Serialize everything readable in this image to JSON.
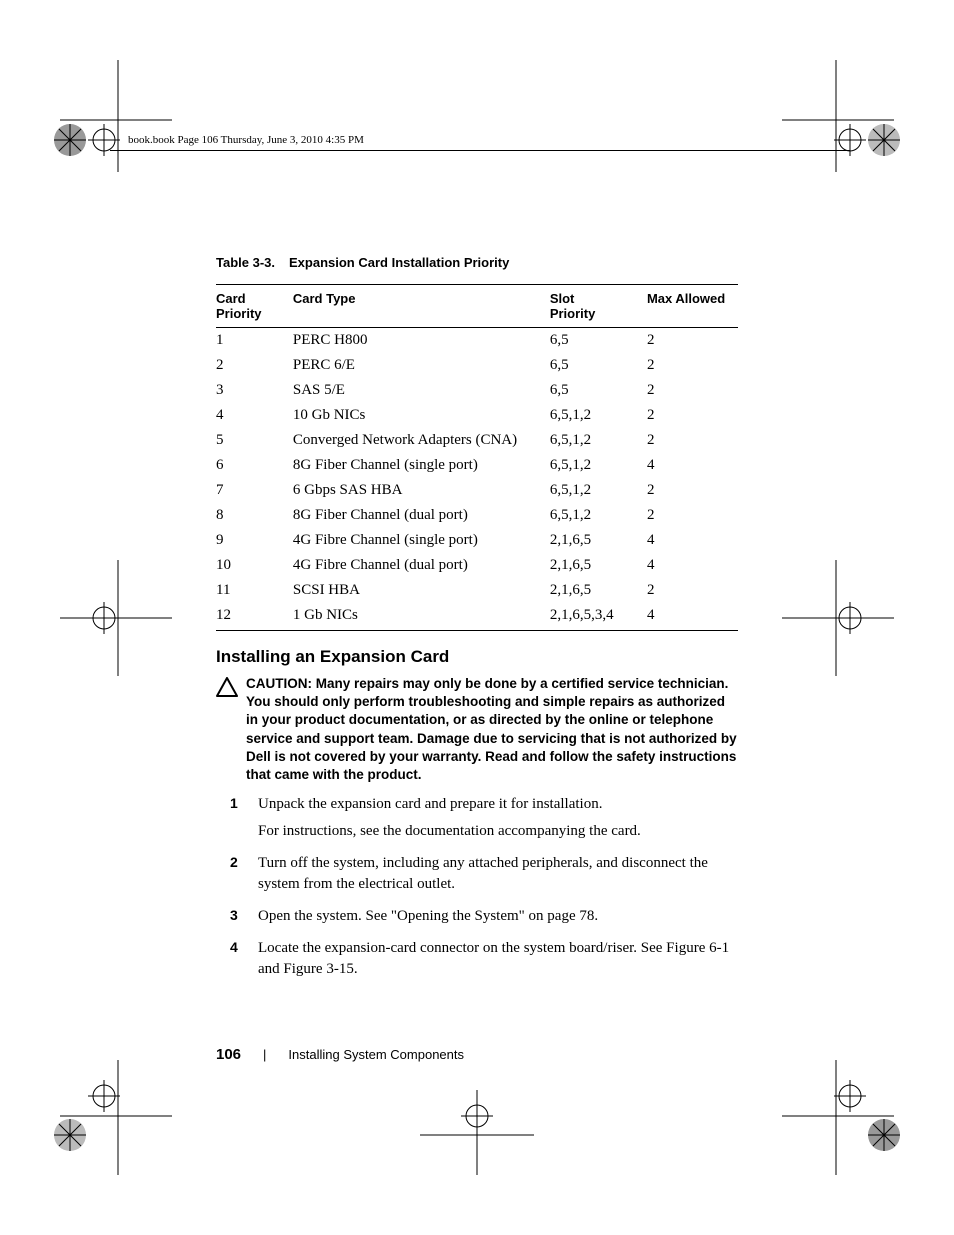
{
  "header_note": "book.book  Page 106  Thursday, June 3, 2010  4:35 PM",
  "table": {
    "caption_label": "Table 3-3.",
    "caption_title": "Expansion Card Installation Priority",
    "columns": {
      "card_priority": "Card Priority",
      "card_type": "Card Type",
      "slot_priority": "Slot Priority",
      "max_allowed": "Max Allowed"
    },
    "rows": [
      {
        "priority": "1",
        "type": "PERC H800",
        "slot": "6,5",
        "max": "2"
      },
      {
        "priority": "2",
        "type": "PERC 6/E",
        "slot": "6,5",
        "max": "2"
      },
      {
        "priority": "3",
        "type": "SAS 5/E",
        "slot": "6,5",
        "max": "2"
      },
      {
        "priority": "4",
        "type": "10 Gb NICs",
        "slot": "6,5,1,2",
        "max": "2"
      },
      {
        "priority": "5",
        "type": "Converged Network Adapters (CNA)",
        "slot": "6,5,1,2",
        "max": "2"
      },
      {
        "priority": "6",
        "type": "8G Fiber Channel (single port)",
        "slot": "6,5,1,2",
        "max": "4"
      },
      {
        "priority": "7",
        "type": "6 Gbps SAS HBA",
        "slot": "6,5,1,2",
        "max": "2"
      },
      {
        "priority": "8",
        "type": "8G Fiber Channel (dual port)",
        "slot": "6,5,1,2",
        "max": "2"
      },
      {
        "priority": "9",
        "type": "4G Fibre Channel (single port)",
        "slot": "2,1,6,5",
        "max": "4"
      },
      {
        "priority": "10",
        "type": "4G Fibre Channel (dual port)",
        "slot": "2,1,6,5",
        "max": "4"
      },
      {
        "priority": "11",
        "type": "SCSI HBA",
        "slot": "2,1,6,5",
        "max": "2"
      },
      {
        "priority": "12",
        "type": "1 Gb NICs",
        "slot": "2,1,6,5,3,4",
        "max": "4"
      }
    ]
  },
  "section_heading": "Installing an Expansion Card",
  "caution": {
    "label": "CAUTION:",
    "text": "Many repairs may only be done by a certified service technician. You should only perform troubleshooting and simple repairs as authorized in your product documentation, or as directed by the online or telephone service and support team. Damage due to servicing that is not authorized by Dell is not covered by your warranty. Read and follow the safety instructions that came with the product."
  },
  "steps": [
    {
      "para1": "Unpack the expansion card and prepare it for installation.",
      "para2": "For instructions, see the documentation accompanying the card."
    },
    {
      "para1": "Turn off the system, including any attached peripherals, and disconnect the system from the electrical outlet."
    },
    {
      "para1": "Open the system. See \"Opening the System\" on page 78."
    },
    {
      "para1": "Locate the expansion-card connector on the system board/riser. See Figure 6-1 and Figure 3-15."
    }
  ],
  "footer": {
    "page_number": "106",
    "section": "Installing System Components"
  },
  "colors": {
    "text": "#000000",
    "background": "#ffffff",
    "rule": "#000000"
  }
}
